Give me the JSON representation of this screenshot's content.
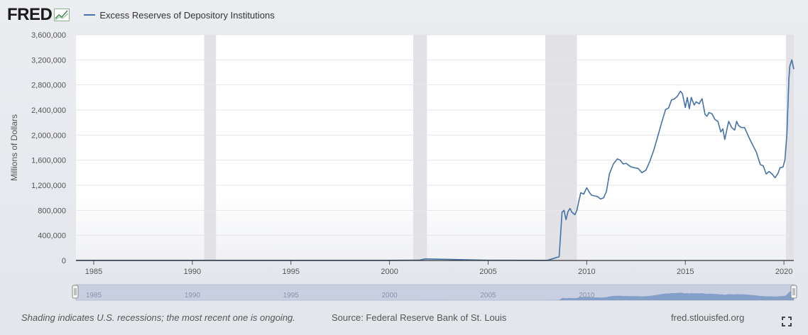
{
  "header": {
    "logo": "FRED",
    "legend_label": "Excess Reserves of Depository Institutions",
    "series_color": "#4572a7"
  },
  "chart_data": {
    "type": "line",
    "title": "",
    "ylabel": "Millions of Dollars",
    "xlabel": "",
    "ylim": [
      0,
      3600000
    ],
    "yticks": [
      0,
      400000,
      800000,
      1200000,
      1600000,
      2000000,
      2400000,
      2800000,
      3200000,
      3600000
    ],
    "ytick_labels": [
      "0",
      "400,000",
      "800,000",
      "1,200,000",
      "1,600,000",
      "2,000,000",
      "2,400,000",
      "2,800,000",
      "3,200,000",
      "3,600,000"
    ],
    "xlim": [
      1984.1,
      2020.5
    ],
    "xticks": [
      1985,
      1990,
      1995,
      2000,
      2005,
      2010,
      2015,
      2020
    ],
    "xtick_labels": [
      "1985",
      "1990",
      "1995",
      "2000",
      "2005",
      "2010",
      "2015",
      "2020"
    ],
    "recessions": [
      [
        1990.6,
        1991.2
      ],
      [
        2001.2,
        2001.9
      ],
      [
        2007.9,
        2009.5
      ],
      [
        2020.1,
        2020.5
      ]
    ],
    "grid": true,
    "series": [
      {
        "color": "#4572a7",
        "x": [
          1984.1,
          1990.0,
          2000.0,
          2001.5,
          2001.8,
          2005.0,
          2008.0,
          2008.6,
          2008.75,
          2008.85,
          2008.95,
          2009.05,
          2009.15,
          2009.25,
          2009.4,
          2009.5,
          2009.6,
          2009.7,
          2009.85,
          2010.0,
          2010.15,
          2010.25,
          2010.4,
          2010.55,
          2010.7,
          2010.85,
          2011.0,
          2011.15,
          2011.35,
          2011.55,
          2011.7,
          2011.85,
          2012.0,
          2012.2,
          2012.4,
          2012.6,
          2012.8,
          2013.0,
          2013.2,
          2013.4,
          2013.6,
          2013.8,
          2014.0,
          2014.15,
          2014.3,
          2014.45,
          2014.6,
          2014.75,
          2014.85,
          2015.0,
          2015.1,
          2015.2,
          2015.3,
          2015.45,
          2015.55,
          2015.7,
          2015.85,
          2016.0,
          2016.1,
          2016.2,
          2016.35,
          2016.5,
          2016.65,
          2016.8,
          2016.9,
          2017.0,
          2017.1,
          2017.2,
          2017.35,
          2017.5,
          2017.6,
          2017.7,
          2017.85,
          2018.0,
          2018.2,
          2018.4,
          2018.6,
          2018.8,
          2018.95,
          2019.1,
          2019.25,
          2019.4,
          2019.55,
          2019.7,
          2019.8,
          2019.95,
          2020.05,
          2020.15,
          2020.25,
          2020.3,
          2020.4,
          2020.5
        ],
        "y": [
          2000,
          2000,
          2000,
          4000,
          25000,
          3000,
          2000,
          60000,
          770000,
          800000,
          650000,
          780000,
          830000,
          770000,
          730000,
          800000,
          950000,
          1080000,
          1060000,
          1160000,
          1080000,
          1040000,
          1030000,
          1020000,
          980000,
          1000000,
          1100000,
          1380000,
          1540000,
          1620000,
          1600000,
          1540000,
          1550000,
          1500000,
          1480000,
          1470000,
          1400000,
          1440000,
          1580000,
          1760000,
          1980000,
          2200000,
          2410000,
          2430000,
          2560000,
          2580000,
          2620000,
          2700000,
          2660000,
          2440000,
          2600000,
          2420000,
          2600000,
          2480000,
          2530000,
          2500000,
          2580000,
          2330000,
          2300000,
          2360000,
          2340000,
          2250000,
          2220000,
          2050000,
          2100000,
          1930000,
          2080000,
          2220000,
          2120000,
          2080000,
          2220000,
          2150000,
          2120000,
          2120000,
          1980000,
          1850000,
          1730000,
          1530000,
          1510000,
          1380000,
          1420000,
          1380000,
          1320000,
          1390000,
          1480000,
          1490000,
          1600000,
          2020000,
          2900000,
          3100000,
          3200000,
          3050000
        ]
      }
    ]
  },
  "navigator": {
    "labels": [
      "1985",
      "1990",
      "1995",
      "2000",
      "2005",
      "2010"
    ]
  },
  "footer": {
    "note": "Shading indicates U.S. recessions; the most recent one is ongoing.",
    "source": "Source: Federal Reserve Bank of St. Louis",
    "url": "fred.stlouisfed.org"
  }
}
